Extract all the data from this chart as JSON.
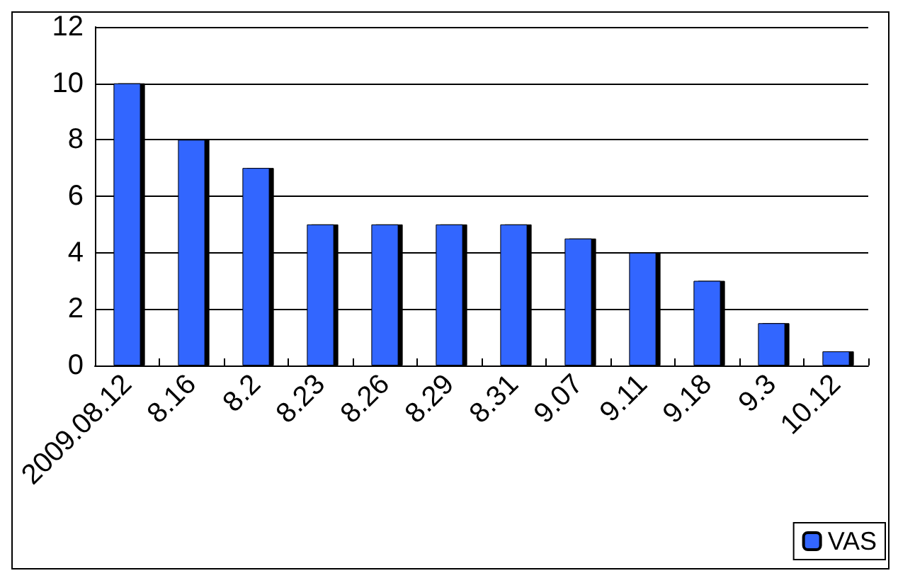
{
  "chart_data": {
    "type": "bar",
    "categories": [
      "2009.08.12",
      "8.16",
      "8.2",
      "8.23",
      "8.26",
      "8.29",
      "8.31",
      "9.07",
      "9.11",
      "9.18",
      "9.3",
      "10.12"
    ],
    "series": [
      {
        "name": "VAS",
        "color": "#3366ff",
        "values": [
          10,
          8,
          7,
          5,
          5,
          5,
          5,
          4.5,
          4,
          3,
          1.5,
          0.5
        ]
      }
    ],
    "ylim": [
      0,
      12
    ],
    "yticks": [
      0,
      2,
      4,
      6,
      8,
      10,
      12
    ],
    "grid": "y",
    "legend": "bottom right"
  }
}
